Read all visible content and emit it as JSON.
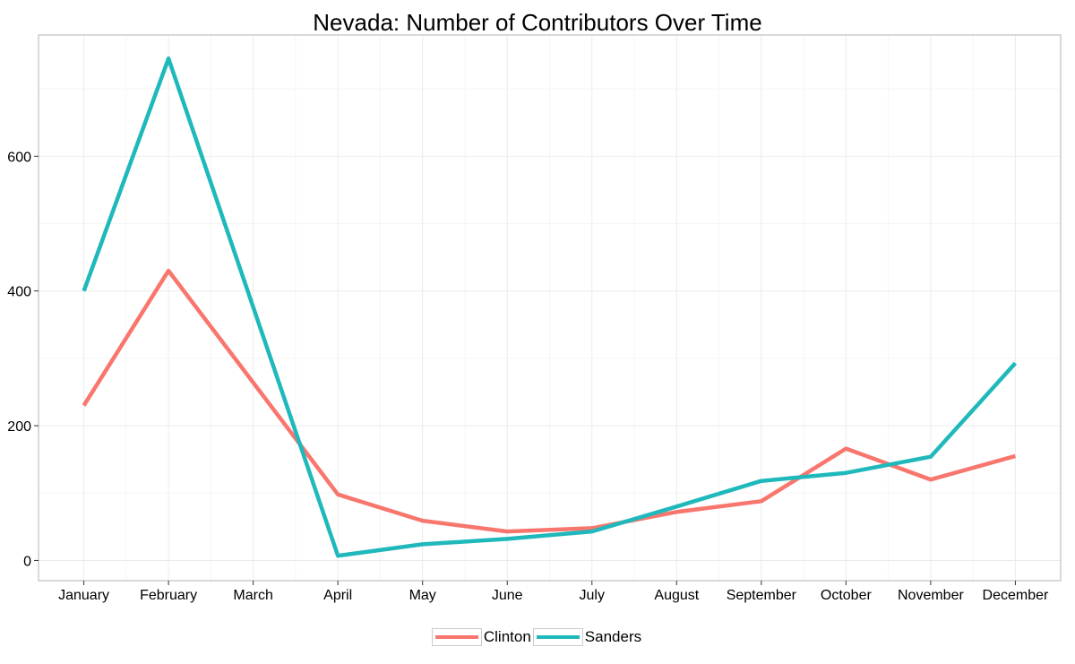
{
  "chart_data": {
    "type": "line",
    "title": "Nevada: Number of Contributors Over Time",
    "xlabel": "",
    "ylabel": "",
    "categories": [
      "January",
      "February",
      "March",
      "April",
      "May",
      "June",
      "July",
      "August",
      "September",
      "October",
      "November",
      "December"
    ],
    "ylim": [
      -30,
      780
    ],
    "yticks": [
      0,
      200,
      400,
      600
    ],
    "grid": true,
    "legend_position": "bottom",
    "series": [
      {
        "name": "Clinton",
        "color": "#F8766D",
        "values": [
          230,
          430,
          null,
          98,
          59,
          43,
          48,
          72,
          88,
          166,
          120,
          155
        ]
      },
      {
        "name": "Sanders",
        "color": "#1FB8BB",
        "values": [
          400,
          745,
          null,
          7,
          24,
          32,
          43,
          80,
          118,
          130,
          154,
          293
        ]
      }
    ]
  }
}
